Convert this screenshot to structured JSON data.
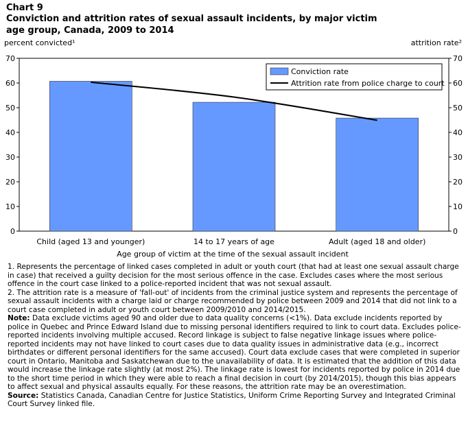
{
  "header": {
    "label": "Chart 9",
    "title": "Conviction and attrition rates of sexual assault incidents, by major victim age group, Canada, 2009 to 2014"
  },
  "chart_data": {
    "type": "bar",
    "categories": [
      "Child (aged 13 and younger)",
      "14 to 17 years of age",
      "Adult (aged 18 and older)"
    ],
    "series": [
      {
        "name": "Conviction rate",
        "type": "bar",
        "axis": "left",
        "values": [
          60.7,
          52.2,
          45.8
        ],
        "color": "#6699ff"
      },
      {
        "name": "Attrition rate from police charge to court",
        "type": "line",
        "axis": "right",
        "values": [
          60.3,
          54.3,
          44.9
        ],
        "color": "#000000"
      }
    ],
    "xlabel": "Age group of victim at the time of the sexual assault incident",
    "ylabel_left": "percent convicted¹",
    "ylabel_right": "attrition rate²",
    "ylim": [
      0,
      70
    ],
    "yticks": [
      "0",
      "10",
      "20",
      "30",
      "40",
      "50",
      "60",
      "70"
    ],
    "grid": false,
    "legend_position": "top-right"
  },
  "notes": {
    "note1": "1. Represents the percentage of linked cases completed in adult or youth court (that had at least one sexual assault charge in case) that received a guilty decision for the most serious offence in the case. Excludes cases where the most serious offence in the court case linked to a police-reported incident that was not sexual assault.",
    "note2": "2. The attrition rate is a measure of 'fall-out' of incidents from the criminal justice system and represents the percentage of sexual assault incidents with a charge laid or charge recommended by police between 2009 and 2014 that did not link to a court case completed in adult or youth court between 2009/2010 and 2014/2015.",
    "note_label": "Note:",
    "note_text": " Data exclude victims aged 90 and older due to data quality concerns (<1%). Data exclude incidents reported by police in Quebec and Prince Edward Island due to missing personal identifiers required to link to court data. Excludes police-reported incidents involving multiple accused. Record linkage is subject to false negative linkage issues where police-reported incidents may not have linked to court cases due to data quality issues in administrative data (e.g., incorrect birthdates or different personal identifiers for the same accused). Court data exclude cases that were completed in superior court in Ontario, Manitoba and Saskatchewan due to the unavailability of data. It is estimated that the addition of this data would increase the linkage rate slightly (at most 2%). The linkage rate is lowest for incidents reported by police in 2014 due to the short time period in which they were able to reach a final decision in court (by 2014/2015), though this bias appears to affect sexual and physical assaults equally. For these reasons, the attrition rate may be an overestimation.",
    "source_label": "Source:",
    "source_text": " Statistics Canada, Canadian Centre for Justice Statistics, Uniform Crime Reporting Survey and Integrated Criminal Court Survey linked file."
  }
}
